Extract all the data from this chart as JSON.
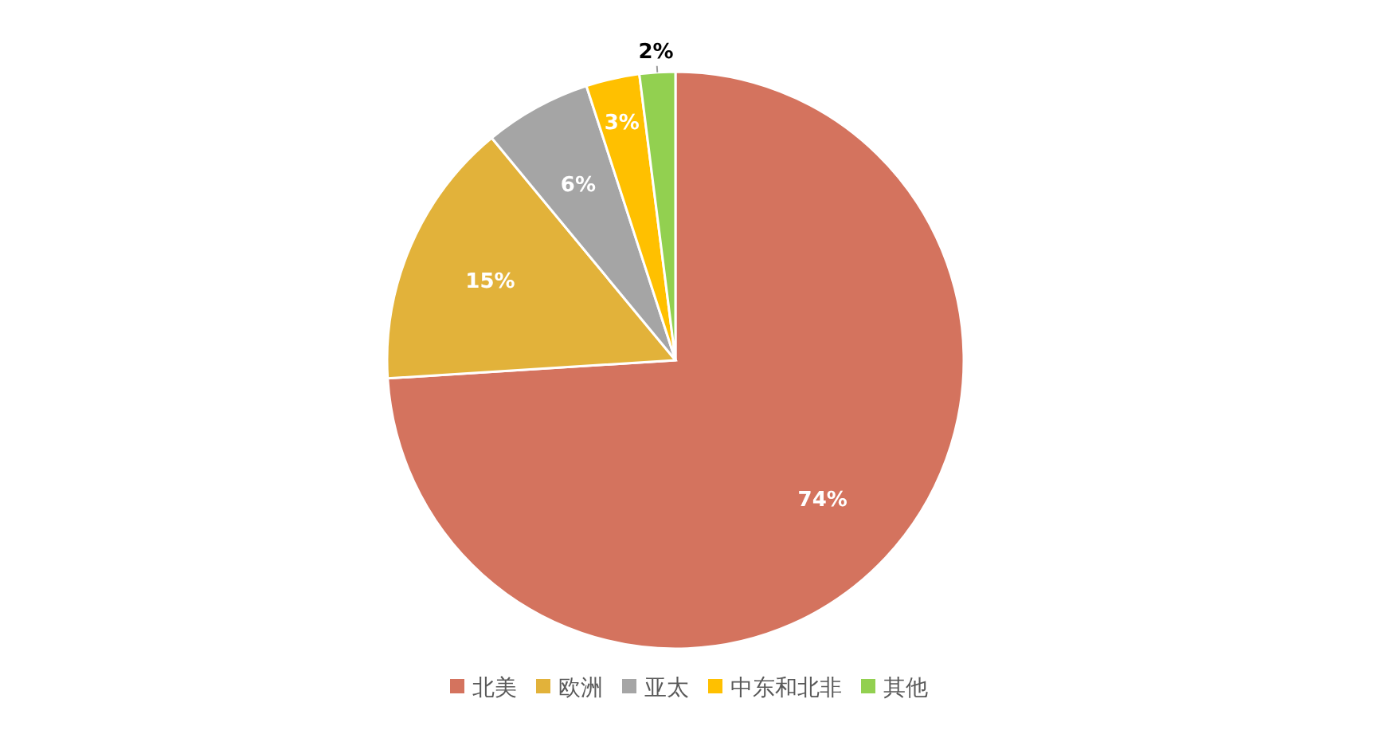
{
  "chart_data": {
    "type": "pie",
    "categories": [
      "北美",
      "欧洲",
      "亚太",
      "中东和北非",
      "其他"
    ],
    "values": [
      74,
      15,
      6,
      3,
      2
    ],
    "colors": [
      "#d4735e",
      "#e2b23a",
      "#a5a5a5",
      "#ffc000",
      "#92d050"
    ],
    "value_labels": [
      "74%",
      "15%",
      "6%",
      "3%",
      "2%"
    ],
    "legend": "bottom"
  }
}
